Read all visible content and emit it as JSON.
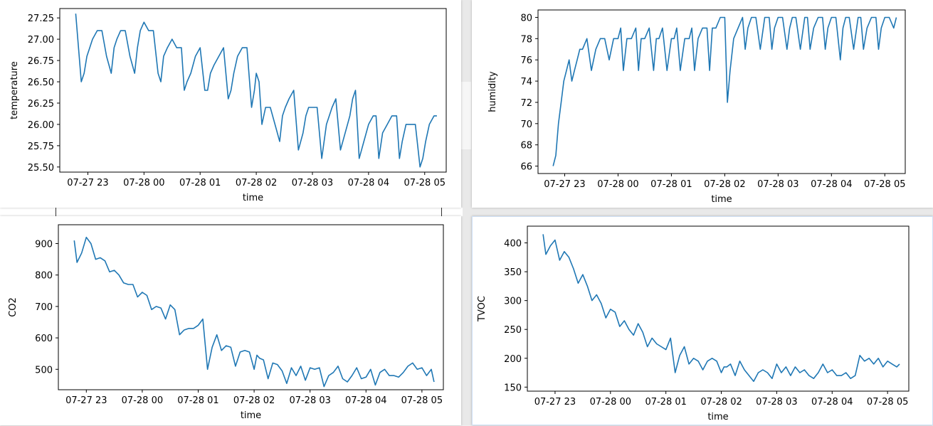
{
  "windows": [
    {
      "id": "temperature",
      "chart_data": {
        "type": "line",
        "xlabel": "time",
        "ylabel": "temperature",
        "x_ticks": [
          "07-27 23",
          "07-28 00",
          "07-28 01",
          "07-28 02",
          "07-28 03",
          "07-28 04",
          "07-28 05"
        ],
        "y_ticks": [
          "25.50",
          "25.75",
          "26.00",
          "26.25",
          "26.50",
          "26.75",
          "27.00",
          "27.25"
        ],
        "ylim": [
          25.44,
          27.36
        ],
        "color": "#1f77b4",
        "series": [
          {
            "x": [
              "22:47",
              "22:50",
              "22:53",
              "22:56",
              "22:59",
              "23:02",
              "23:05",
              "23:10",
              "23:15",
              "23:20",
              "23:25",
              "23:28",
              "23:31",
              "23:35",
              "23:40",
              "23:45",
              "23:50",
              "23:53",
              "23:56",
              "00:00",
              "00:05",
              "00:10",
              "00:15",
              "00:18",
              "00:21",
              "00:25",
              "00:30",
              "00:35",
              "00:40",
              "00:43",
              "00:46",
              "00:50",
              "00:55",
              "01:00",
              "01:05",
              "01:08",
              "01:11",
              "01:15",
              "01:20",
              "01:25",
              "01:30",
              "01:33",
              "01:36",
              "01:40",
              "01:45",
              "01:50",
              "01:55",
              "01:58",
              "02:00",
              "02:03",
              "02:06",
              "02:10",
              "02:15",
              "02:20",
              "02:25",
              "02:28",
              "02:31",
              "02:35",
              "02:40",
              "02:45",
              "02:50",
              "02:53",
              "02:56",
              "03:00",
              "03:05",
              "03:10",
              "03:15",
              "03:18",
              "03:21",
              "03:25",
              "03:30",
              "03:35",
              "03:40",
              "03:43",
              "03:46",
              "03:50",
              "03:55",
              "04:00",
              "04:05",
              "04:08",
              "04:11",
              "04:15",
              "04:20",
              "04:25",
              "04:30",
              "04:33",
              "04:36",
              "04:40",
              "04:45",
              "04:50",
              "04:55",
              "04:58",
              "05:01",
              "05:05",
              "05:10",
              "05:13"
            ],
            "values": [
              27.3,
              26.9,
              26.5,
              26.6,
              26.8,
              26.9,
              27.0,
              27.1,
              27.1,
              26.8,
              26.6,
              26.9,
              27.0,
              27.1,
              27.1,
              26.8,
              26.6,
              26.9,
              27.1,
              27.2,
              27.1,
              27.1,
              26.6,
              26.5,
              26.8,
              26.9,
              27.0,
              26.9,
              26.9,
              26.4,
              26.5,
              26.6,
              26.8,
              26.9,
              26.4,
              26.4,
              26.6,
              26.7,
              26.8,
              26.9,
              26.3,
              26.4,
              26.6,
              26.8,
              26.9,
              26.9,
              26.2,
              26.4,
              26.6,
              26.5,
              26.0,
              26.2,
              26.2,
              26.0,
              25.8,
              26.1,
              26.2,
              26.3,
              26.4,
              25.7,
              25.9,
              26.1,
              26.2,
              26.2,
              26.2,
              25.6,
              26.0,
              26.1,
              26.2,
              26.3,
              25.7,
              25.9,
              26.1,
              26.3,
              26.4,
              25.6,
              25.8,
              26.0,
              26.1,
              26.1,
              25.6,
              25.9,
              26.0,
              26.1,
              26.1,
              25.6,
              25.8,
              26.0,
              26.0,
              26.0,
              25.5,
              25.6,
              25.8,
              26.0,
              26.1,
              26.1
            ]
          }
        ]
      }
    },
    {
      "id": "humidity",
      "chart_data": {
        "type": "line",
        "xlabel": "time",
        "ylabel": "humidity",
        "x_ticks": [
          "07-27 23",
          "07-28 00",
          "07-28 01",
          "07-28 02",
          "07-28 03",
          "07-28 04",
          "07-28 05"
        ],
        "y_ticks": [
          "66",
          "68",
          "70",
          "72",
          "74",
          "76",
          "78",
          "80"
        ],
        "ylim": [
          65.3,
          80.7
        ],
        "color": "#1f77b4",
        "series": [
          {
            "x": [
              "22:47",
              "22:50",
              "22:53",
              "22:56",
              "22:59",
              "23:02",
              "23:05",
              "23:08",
              "23:11",
              "23:14",
              "23:17",
              "23:20",
              "23:25",
              "23:30",
              "23:35",
              "23:40",
              "23:45",
              "23:50",
              "23:55",
              "24:00",
              "24:03",
              "24:06",
              "24:10",
              "24:15",
              "24:20",
              "24:23",
              "24:26",
              "24:30",
              "24:35",
              "24:40",
              "24:43",
              "24:46",
              "24:50",
              "24:55",
              "25:00",
              "25:03",
              "25:06",
              "25:10",
              "25:15",
              "25:20",
              "25:23",
              "25:26",
              "25:30",
              "25:35",
              "25:40",
              "25:43",
              "25:46",
              "25:50",
              "25:55",
              "26:00",
              "26:03",
              "26:06",
              "26:10",
              "26:15",
              "26:20",
              "26:23",
              "26:26",
              "26:30",
              "26:35",
              "26:40",
              "26:45",
              "26:50",
              "26:53",
              "26:56",
              "27:00",
              "27:05",
              "27:10",
              "27:13",
              "27:16",
              "27:20",
              "27:25",
              "27:30",
              "27:33",
              "27:36",
              "27:40",
              "27:45",
              "27:50",
              "27:53",
              "27:56",
              "28:00",
              "28:05",
              "28:10",
              "28:13",
              "28:16",
              "28:20",
              "28:25",
              "28:30",
              "28:33",
              "28:36",
              "28:40",
              "28:45",
              "28:50",
              "28:53",
              "28:56",
              "29:00",
              "29:05",
              "29:10",
              "29:13"
            ],
            "values": [
              66,
              67,
              70,
              72,
              74,
              75,
              76,
              74,
              75,
              76,
              77,
              77,
              78,
              75,
              77,
              78,
              78,
              76,
              78,
              78,
              79,
              75,
              78,
              78,
              79,
              75,
              78,
              78,
              79,
              75,
              78,
              78,
              79,
              75,
              78,
              78,
              79,
              75,
              78,
              78,
              79,
              75,
              78,
              79,
              79,
              75,
              79,
              79,
              80,
              80,
              72,
              75,
              78,
              79,
              80,
              77,
              79,
              80,
              80,
              77,
              80,
              80,
              77,
              79,
              80,
              80,
              77,
              79,
              80,
              80,
              77,
              80,
              80,
              77,
              79,
              80,
              80,
              77,
              79,
              80,
              80,
              76,
              79,
              80,
              80,
              77,
              80,
              80,
              77,
              79,
              80,
              80,
              77,
              79,
              80,
              80,
              79,
              80
            ]
          }
        ]
      }
    },
    {
      "id": "co2",
      "chart_data": {
        "type": "line",
        "xlabel": "time",
        "ylabel": "CO2",
        "x_ticks": [
          "07-27 23",
          "07-28 00",
          "07-28 01",
          "07-28 02",
          "07-28 03",
          "07-28 04",
          "07-28 05"
        ],
        "y_ticks": [
          "500",
          "600",
          "700",
          "800",
          "900"
        ],
        "ylim": [
          435,
          960
        ],
        "color": "#1f77b4",
        "series": [
          {
            "x": [
              "22:47",
              "22:50",
              "22:55",
              "23:00",
              "23:05",
              "23:10",
              "23:15",
              "23:20",
              "23:25",
              "23:30",
              "23:35",
              "23:40",
              "23:45",
              "23:50",
              "23:55",
              "00:00",
              "00:05",
              "00:10",
              "00:15",
              "00:20",
              "00:25",
              "00:30",
              "00:35",
              "00:40",
              "00:45",
              "00:50",
              "00:55",
              "01:00",
              "01:05",
              "01:10",
              "01:15",
              "01:20",
              "01:25",
              "01:30",
              "01:35",
              "01:40",
              "01:45",
              "01:50",
              "01:55",
              "02:00",
              "02:03",
              "02:06",
              "02:10",
              "02:15",
              "02:20",
              "02:25",
              "02:30",
              "02:35",
              "02:40",
              "02:45",
              "02:50",
              "02:55",
              "03:00",
              "03:05",
              "03:10",
              "03:15",
              "03:20",
              "03:25",
              "03:30",
              "03:35",
              "03:40",
              "03:45",
              "03:50",
              "03:55",
              "04:00",
              "04:05",
              "04:10",
              "04:15",
              "04:20",
              "04:25",
              "04:30",
              "04:35",
              "04:40",
              "04:45",
              "04:50",
              "04:55",
              "05:00",
              "05:05",
              "05:10",
              "05:13"
            ],
            "values": [
              910,
              840,
              870,
              920,
              900,
              850,
              855,
              845,
              810,
              815,
              800,
              775,
              770,
              770,
              730,
              745,
              735,
              690,
              700,
              695,
              660,
              705,
              690,
              610,
              625,
              630,
              630,
              640,
              660,
              500,
              570,
              610,
              560,
              575,
              570,
              510,
              555,
              560,
              555,
              500,
              545,
              535,
              530,
              470,
              520,
              515,
              495,
              455,
              505,
              480,
              510,
              465,
              505,
              500,
              505,
              445,
              480,
              490,
              510,
              470,
              460,
              480,
              505,
              470,
              475,
              500,
              450,
              490,
              500,
              480,
              480,
              475,
              490,
              510,
              520,
              500,
              505,
              480,
              500,
              460
            ]
          }
        ]
      }
    },
    {
      "id": "tvoc",
      "chart_data": {
        "type": "line",
        "xlabel": "time",
        "ylabel": "TVOC",
        "x_ticks": [
          "07-27 23",
          "07-28 00",
          "07-28 01",
          "07-28 02",
          "07-28 03",
          "07-28 04",
          "07-28 05"
        ],
        "y_ticks": [
          "150",
          "200",
          "250",
          "300",
          "350",
          "400"
        ],
        "ylim": [
          143,
          429
        ],
        "color": "#1f77b4",
        "series": [
          {
            "x": [
              "22:47",
              "22:50",
              "22:55",
              "23:00",
              "23:05",
              "23:10",
              "23:15",
              "23:20",
              "23:25",
              "23:30",
              "23:35",
              "23:40",
              "23:45",
              "23:50",
              "23:55",
              "00:00",
              "00:05",
              "00:10",
              "00:15",
              "00:20",
              "00:25",
              "00:30",
              "00:35",
              "00:40",
              "00:45",
              "00:50",
              "00:55",
              "01:00",
              "01:05",
              "01:10",
              "01:15",
              "01:20",
              "01:25",
              "01:30",
              "01:35",
              "01:40",
              "01:45",
              "01:50",
              "01:55",
              "02:00",
              "02:03",
              "02:06",
              "02:10",
              "02:15",
              "02:20",
              "02:25",
              "02:30",
              "02:35",
              "02:40",
              "02:45",
              "02:50",
              "02:55",
              "03:00",
              "03:05",
              "03:10",
              "03:15",
              "03:20",
              "03:25",
              "03:30",
              "03:35",
              "03:40",
              "03:45",
              "03:50",
              "03:55",
              "04:00",
              "04:05",
              "04:10",
              "04:15",
              "04:20",
              "04:25",
              "04:30",
              "04:35",
              "04:40",
              "04:45",
              "04:50",
              "04:55",
              "05:00",
              "05:05",
              "05:10",
              "05:13"
            ],
            "values": [
              415,
              380,
              395,
              405,
              370,
              385,
              375,
              355,
              330,
              345,
              325,
              300,
              310,
              295,
              270,
              285,
              280,
              255,
              265,
              250,
              240,
              260,
              245,
              220,
              235,
              225,
              220,
              215,
              235,
              175,
              205,
              220,
              190,
              200,
              195,
              180,
              195,
              200,
              195,
              175,
              185,
              185,
              190,
              170,
              195,
              180,
              170,
              160,
              175,
              180,
              175,
              165,
              190,
              175,
              185,
              170,
              185,
              175,
              180,
              170,
              165,
              175,
              190,
              175,
              180,
              170,
              170,
              175,
              165,
              170,
              205,
              195,
              200,
              190,
              200,
              185,
              195,
              190,
              185,
              190
            ]
          }
        ]
      }
    }
  ]
}
